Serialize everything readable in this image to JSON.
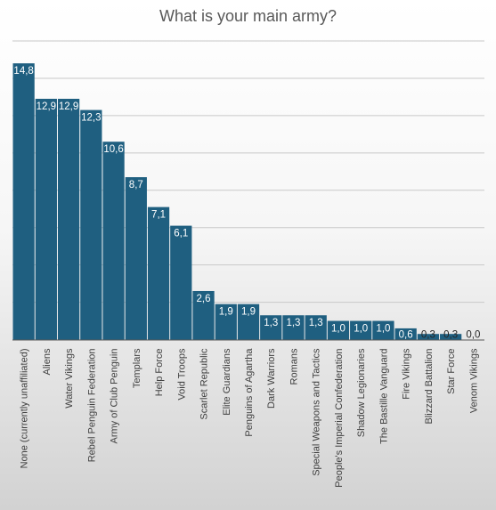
{
  "chart_data": {
    "type": "bar",
    "title": "What is your main army?",
    "xlabel": "",
    "ylabel": "",
    "ylim": [
      0,
      16
    ],
    "grid": true,
    "legend": "none",
    "bar_color": "#1f5f80",
    "categories": [
      "None (currently unaffiliated)",
      "Aliens",
      "Water Vikings",
      "Rebel Penguin Federation",
      "Army of Club Penguin",
      "Templars",
      "Help Force",
      "Void Troops",
      "Scarlet Republic",
      "Elite Guardians",
      "Penguins of Agartha",
      "Dark Warriors",
      "Romans",
      "Special Weapons and Tactics",
      "People's Imperial Confederation",
      "Shadow Legionaries",
      "The Bastille Vanguard",
      "Fire Vikings",
      "Blizzard Battalion",
      "Star Force",
      "Venom Vikings"
    ],
    "values": [
      14.8,
      12.9,
      12.9,
      12.3,
      10.6,
      8.7,
      7.1,
      6.1,
      2.6,
      1.9,
      1.9,
      1.3,
      1.3,
      1.3,
      1.0,
      1.0,
      1.0,
      0.6,
      0.3,
      0.3,
      0.0
    ],
    "data_labels": [
      "14,8",
      "12,9",
      "12,9",
      "12,3",
      "10,6",
      "8,7",
      "7,1",
      "6,1",
      "2,6",
      "1,9",
      "1,9",
      "1,3",
      "1,3",
      "1,3",
      "1,0",
      "1,0",
      "1,0",
      "0,6",
      "0,3",
      "0,3",
      "0,0"
    ]
  }
}
